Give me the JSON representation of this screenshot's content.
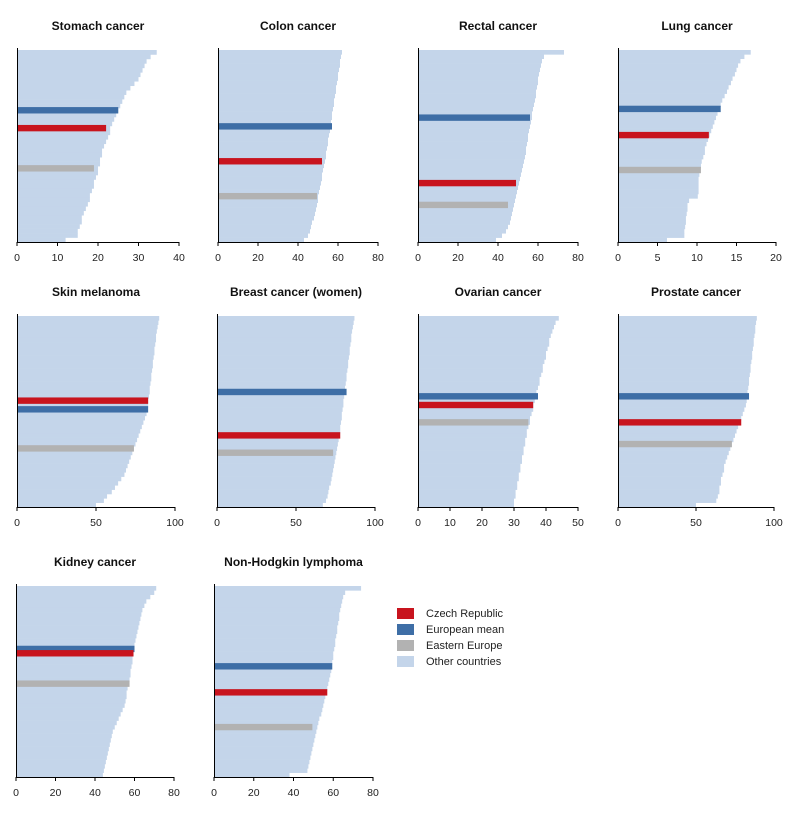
{
  "chart_data": [
    {
      "type": "bar",
      "title": "Stomach cancer",
      "xlim": [
        0,
        40
      ],
      "xticks": [
        "0",
        "10",
        "20",
        "30",
        "40"
      ],
      "other_countries": [
        34.5,
        33,
        32,
        31.5,
        31,
        30.5,
        30,
        29,
        28,
        27,
        26.5,
        26,
        25.5,
        25,
        24.5,
        24,
        23.5,
        23,
        23,
        22.5,
        22,
        21.5,
        21,
        21,
        20.5,
        20.5,
        20,
        20,
        19.5,
        19,
        19,
        18.5,
        18,
        18,
        17.5,
        17,
        16.5,
        16,
        16,
        15.5,
        15,
        15,
        12
      ],
      "highlights": [
        {
          "series": "European mean",
          "value": 25,
          "rank": 13
        },
        {
          "series": "Czech Republic",
          "value": 22,
          "rank": 17
        },
        {
          "series": "Eastern Europe",
          "value": 19,
          "rank": 26
        }
      ]
    },
    {
      "type": "bar",
      "title": "Colon cancer",
      "xlim": [
        0,
        80
      ],
      "xticks": [
        "0",
        "20",
        "40",
        "60",
        "80"
      ],
      "other_countries": [
        62,
        61.5,
        61,
        61,
        60.5,
        60,
        60,
        59.5,
        59,
        59,
        58.5,
        58,
        58,
        57.5,
        57,
        57,
        56.5,
        56,
        56,
        55.5,
        55,
        55,
        54.5,
        54,
        54,
        53.5,
        53,
        52.5,
        52,
        52,
        51.5,
        51,
        50.5,
        50,
        50,
        49.5,
        49,
        48.5,
        48,
        47,
        46.5,
        46,
        45,
        43
      ],
      "highlights": [
        {
          "series": "European mean",
          "value": 57,
          "rank": 17
        },
        {
          "series": "Czech Republic",
          "value": 52,
          "rank": 25
        },
        {
          "series": "Eastern Europe",
          "value": 49.5,
          "rank": 33
        }
      ]
    },
    {
      "type": "bar",
      "title": "Rectal cancer",
      "xlim": [
        0,
        80
      ],
      "xticks": [
        "0",
        "20",
        "40",
        "60",
        "80"
      ],
      "other_countries": [
        73,
        63,
        62,
        61.5,
        61,
        60.5,
        60,
        60,
        59.5,
        59,
        59,
        58.5,
        58,
        57.5,
        57,
        57,
        56.5,
        56,
        55.5,
        55,
        55,
        54.5,
        54,
        54,
        53.5,
        53,
        52.5,
        52,
        51.5,
        51,
        50.5,
        50,
        49.5,
        49,
        48.5,
        48,
        47.5,
        47,
        46.5,
        46,
        45,
        44,
        42,
        39
      ],
      "highlights": [
        {
          "series": "European mean",
          "value": 56,
          "rank": 15
        },
        {
          "series": "Czech Republic",
          "value": 49,
          "rank": 30
        },
        {
          "series": "Eastern Europe",
          "value": 45,
          "rank": 35
        }
      ]
    },
    {
      "type": "bar",
      "title": "Lung cancer",
      "xlim": [
        0,
        20
      ],
      "xticks": [
        "0",
        "5",
        "10",
        "15",
        "20"
      ],
      "other_countries": [
        16.8,
        16,
        15.5,
        15.2,
        15,
        14.8,
        14.5,
        14.3,
        14,
        13.8,
        13.5,
        13.2,
        13,
        12.8,
        12.6,
        12.4,
        12.2,
        12,
        11.8,
        11.6,
        11.4,
        11.2,
        11,
        11,
        10.8,
        10.6,
        10.5,
        10.4,
        10.3,
        10.2,
        10.2,
        10.2,
        10.2,
        10.1,
        9,
        8.8,
        8.8,
        8.7,
        8.6,
        8.6,
        8.5,
        8.4,
        8.4,
        6.2
      ],
      "highlights": [
        {
          "series": "European mean",
          "value": 13,
          "rank": 13
        },
        {
          "series": "Czech Republic",
          "value": 11.5,
          "rank": 19
        },
        {
          "series": "Eastern Europe",
          "value": 10.5,
          "rank": 27
        }
      ]
    },
    {
      "type": "bar",
      "title": "Skin melanoma",
      "xlim": [
        0,
        100
      ],
      "xticks": [
        "0",
        "50",
        "100"
      ],
      "other_countries": [
        90,
        89.5,
        89,
        88.5,
        88,
        88,
        87.5,
        87,
        87,
        86.5,
        86,
        86,
        85.5,
        85,
        85,
        84.5,
        84,
        84,
        83.5,
        83,
        83,
        82.5,
        82,
        81,
        80,
        79,
        78,
        77,
        76,
        75,
        74,
        73,
        72,
        71,
        70,
        69,
        68,
        66,
        64,
        62,
        60,
        57,
        55,
        50
      ],
      "highlights": [
        {
          "series": "Czech Republic",
          "value": 83,
          "rank": 19
        },
        {
          "series": "European mean",
          "value": 83,
          "rank": 21
        },
        {
          "series": "Eastern Europe",
          "value": 74,
          "rank": 30
        }
      ]
    },
    {
      "type": "bar",
      "title": "Breast cancer (women)",
      "xlim": [
        0,
        100
      ],
      "xticks": [
        "0",
        "50",
        "100"
      ],
      "other_countries": [
        87,
        86.5,
        86,
        85.5,
        85,
        85,
        84.5,
        84,
        84,
        83.5,
        83,
        83,
        82.5,
        82,
        82,
        81.5,
        81,
        81,
        80.5,
        80,
        80,
        79.5,
        79,
        79,
        78.5,
        78,
        78,
        77.5,
        77,
        76.5,
        76,
        75.5,
        75,
        74.5,
        74,
        73.5,
        73,
        72.5,
        72,
        71,
        70.5,
        70,
        69,
        67
      ],
      "highlights": [
        {
          "series": "European mean",
          "value": 82,
          "rank": 17
        },
        {
          "series": "Czech Republic",
          "value": 78,
          "rank": 27
        },
        {
          "series": "Eastern Europe",
          "value": 73.5,
          "rank": 31
        }
      ]
    },
    {
      "type": "bar",
      "title": "Ovarian cancer",
      "xlim": [
        0,
        50
      ],
      "xticks": [
        "0",
        "10",
        "20",
        "30",
        "40",
        "50"
      ],
      "other_countries": [
        44,
        43,
        42.5,
        42,
        41.5,
        41,
        41,
        40.5,
        40,
        40,
        39.5,
        39,
        39,
        38.5,
        38,
        38,
        37.5,
        37,
        37,
        36.5,
        36,
        36,
        35.5,
        35,
        35,
        34.5,
        34,
        34,
        33.5,
        33.5,
        33,
        33,
        32.5,
        32.5,
        32,
        32,
        31.5,
        31.5,
        31,
        31,
        30.5,
        30.5,
        30,
        30
      ],
      "highlights": [
        {
          "series": "European mean",
          "value": 37.5,
          "rank": 18
        },
        {
          "series": "Czech Republic",
          "value": 36,
          "rank": 20
        },
        {
          "series": "Eastern Europe",
          "value": 34.5,
          "rank": 24
        }
      ]
    },
    {
      "type": "bar",
      "title": "Prostate cancer",
      "xlim": [
        0,
        100
      ],
      "xticks": [
        "0",
        "50",
        "100"
      ],
      "other_countries": [
        89,
        88.5,
        88,
        88,
        87.5,
        87,
        87,
        86.5,
        86,
        86,
        85.5,
        85,
        85,
        84.5,
        84,
        84,
        83.5,
        83,
        83,
        82.5,
        82,
        81,
        80,
        79,
        78,
        77,
        76,
        75,
        74,
        73,
        72,
        71,
        70,
        69,
        68,
        68,
        67,
        66,
        66,
        65,
        65,
        64,
        63,
        50
      ],
      "highlights": [
        {
          "series": "European mean",
          "value": 84,
          "rank": 18
        },
        {
          "series": "Czech Republic",
          "value": 79,
          "rank": 24
        },
        {
          "series": "Eastern Europe",
          "value": 73,
          "rank": 29
        }
      ]
    },
    {
      "type": "bar",
      "title": "Kidney cancer",
      "xlim": [
        0,
        80
      ],
      "xticks": [
        "0",
        "20",
        "40",
        "60",
        "80"
      ],
      "other_countries": [
        71,
        70,
        68,
        66,
        65,
        64,
        63.5,
        63,
        62.5,
        62,
        61.5,
        61,
        60.5,
        60,
        60,
        59.5,
        59,
        59,
        58.5,
        58,
        58,
        57.5,
        57,
        56.5,
        56,
        56,
        55.5,
        55,
        54,
        53,
        52,
        51,
        50,
        49,
        48.5,
        48,
        47.5,
        47,
        46.5,
        46,
        45.5,
        45,
        44.5,
        44
      ],
      "highlights": [
        {
          "series": "European mean",
          "value": 60,
          "rank": 14
        },
        {
          "series": "Czech Republic",
          "value": 59.5,
          "rank": 15
        },
        {
          "series": "Eastern Europe",
          "value": 57.5,
          "rank": 22
        }
      ]
    },
    {
      "type": "bar",
      "title": "Non-Hodgkin lymphoma",
      "xlim": [
        0,
        80
      ],
      "xticks": [
        "0",
        "20",
        "40",
        "60",
        "80"
      ],
      "other_countries": [
        74,
        66,
        65,
        64.5,
        64,
        63.5,
        63,
        63,
        62.5,
        62,
        62,
        61.5,
        61,
        61,
        60.5,
        60,
        60,
        59.5,
        59,
        59,
        58.5,
        58,
        57.5,
        57,
        56.5,
        56,
        55.5,
        55,
        54.5,
        54,
        53,
        52.5,
        52,
        51.5,
        51,
        50.5,
        50,
        49.5,
        49,
        48.5,
        48,
        47.5,
        47,
        38
      ],
      "highlights": [
        {
          "series": "European mean",
          "value": 59.5,
          "rank": 18
        },
        {
          "series": "Czech Republic",
          "value": 57,
          "rank": 24
        },
        {
          "series": "Eastern Europe",
          "value": 49.5,
          "rank": 32
        }
      ]
    }
  ],
  "legend": {
    "items": [
      {
        "label": "Czech Republic",
        "color": "#c8141e"
      },
      {
        "label": "European mean",
        "color": "#3e6ea6"
      },
      {
        "label": "Eastern Europe",
        "color": "#b2b2b2"
      },
      {
        "label": "Other countries",
        "color": "#c4d5ea"
      }
    ]
  },
  "colors": {
    "Czech Republic": "#c8141e",
    "European mean": "#3e6ea6",
    "Eastern Europe": "#b2b2b2",
    "Other countries": "#c4d5ea"
  }
}
